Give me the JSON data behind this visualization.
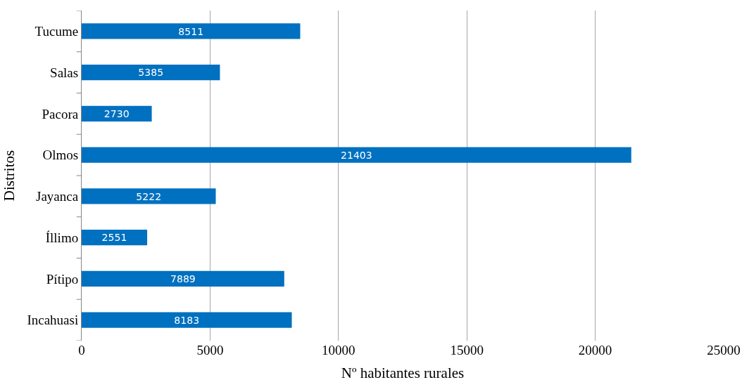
{
  "chart_data": {
    "type": "bar",
    "orientation": "horizontal",
    "categories": [
      "Tucume",
      "Salas",
      "Pacora",
      "Olmos",
      "Jayanca",
      "Íllimo",
      "Pítipo",
      "Incahuasi"
    ],
    "values": [
      8511,
      5385,
      2730,
      21403,
      5222,
      2551,
      7889,
      8183
    ],
    "color": "#0070c0",
    "xlabel": "Nº habitantes rurales",
    "ylabel": "Distritos",
    "xlim": [
      0,
      25000
    ],
    "xticks": [
      0,
      5000,
      10000,
      15000,
      20000,
      25000
    ],
    "grid": "x",
    "data_labels": true,
    "legend": false
  }
}
